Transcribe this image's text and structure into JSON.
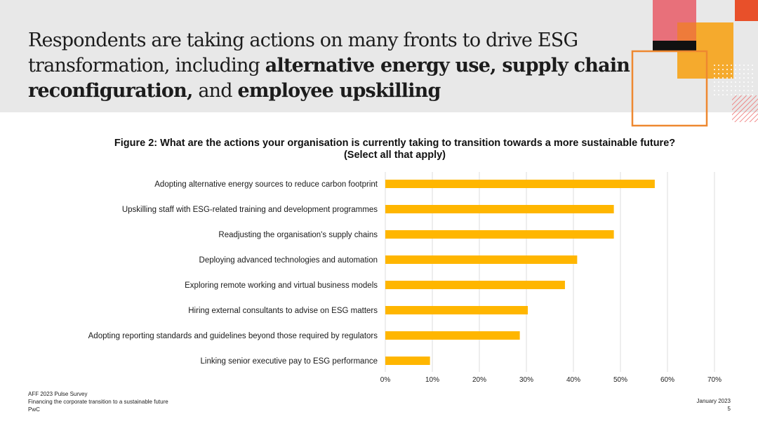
{
  "slide": {
    "title_parts": [
      {
        "text": "Respondents are taking actions on many fronts to drive ESG transformation, including ",
        "bold": false
      },
      {
        "text": "alternative energy use, supply chain reconfiguration,",
        "bold": true
      },
      {
        "text": " and ",
        "bold": false
      },
      {
        "text": "employee upskilling",
        "bold": true
      }
    ]
  },
  "colors": {
    "bar": "#FFB600",
    "header_band": "#E8E8E8",
    "deco_rose": "#E8707A",
    "deco_orange": "#F0A030",
    "deco_red": "#E8502A",
    "deco_outline": "#EE8830"
  },
  "chart_data": {
    "type": "bar",
    "orientation": "horizontal",
    "title": "Figure 2: What are the actions your organisation is currently taking to transition towards a more sustainable future? (Select all that apply)",
    "categories": [
      "Adopting alternative energy sources to reduce carbon footprint",
      "Upskilling staff with ESG-related training and development programmes",
      "Readjusting the organisation's supply chains",
      "Deploying advanced technologies and automation",
      "Exploring remote working and virtual business models",
      "Hiring external consultants to advise on ESG matters",
      "Adopting reporting standards and guidelines beyond those required by regulators",
      "Linking senior executive pay to ESG performance"
    ],
    "values": [
      57.3,
      48.6,
      48.6,
      40.8,
      38.2,
      30.3,
      28.6,
      9.5
    ],
    "xlim": [
      0,
      70
    ],
    "xticks": [
      "0%",
      "10%",
      "20%",
      "30%",
      "40%",
      "50%",
      "60%",
      "70%"
    ],
    "xlabel": "",
    "ylabel": "",
    "grid": true,
    "legend": "none"
  },
  "footer": {
    "source": "AFF 2023 Pulse Survey",
    "subtitle": "Financing the corporate transition to a sustainable future",
    "company": "PwC",
    "date": "January 2023",
    "page_number": "5"
  }
}
